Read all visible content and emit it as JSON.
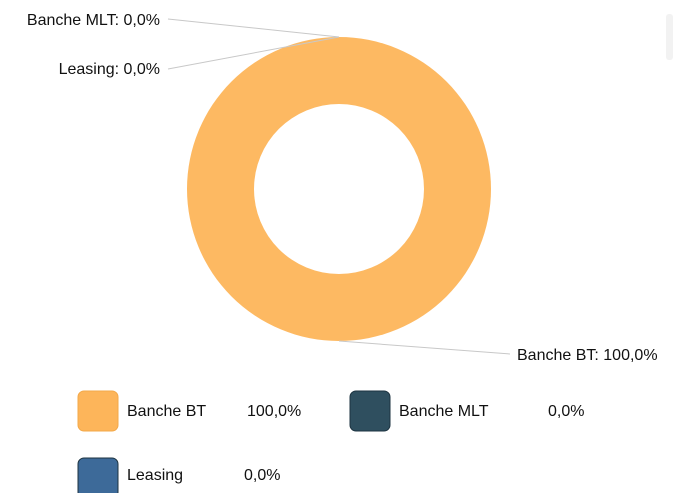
{
  "chart_data": {
    "type": "donut",
    "categories": [
      "Banche BT",
      "Banche MLT",
      "Leasing"
    ],
    "values": [
      100,
      0,
      0
    ],
    "value_labels": [
      "100,0%",
      "0,0%",
      "0,0%"
    ],
    "data_labels": [
      "Banche BT: 100,0%",
      "Banche MLT: 0,0%",
      "Leasing: 0,0%"
    ],
    "colors": [
      "#fdb55a",
      "#2f4f5f",
      "#3d6a99"
    ],
    "legend": "bottom"
  }
}
